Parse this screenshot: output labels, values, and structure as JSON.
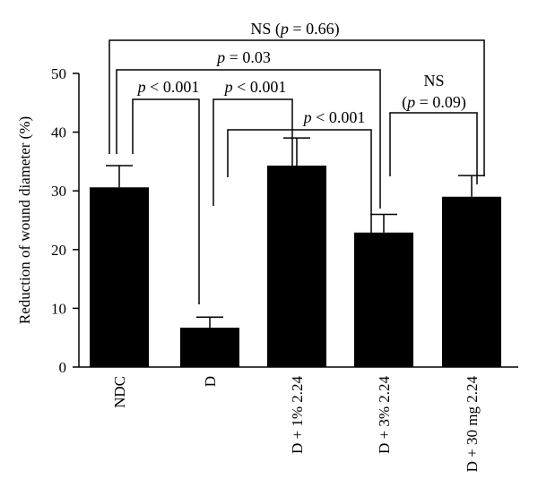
{
  "chart_data": {
    "type": "bar",
    "title": "",
    "xlabel": "",
    "ylabel": "Reduction of wound diameter (%)",
    "ylim": [
      0,
      50
    ],
    "yticks": [
      0,
      10,
      20,
      30,
      40,
      50
    ],
    "categories": [
      "NDC",
      "D",
      "D + 1% 2.24",
      "D + 3% 2.24",
      "D + 30 mg 2.24"
    ],
    "values": [
      30.6,
      6.7,
      34.3,
      22.9,
      29.0
    ],
    "errors": [
      3.7,
      1.8,
      4.7,
      3.1,
      3.6
    ],
    "bar_color": "#000000",
    "grid": false,
    "annotations": [
      {
        "from": 0,
        "to": 4,
        "label_parts": [
          "NS (",
          "p",
          " = 0.66)"
        ]
      },
      {
        "from": 0,
        "to": 3,
        "label_parts": [
          "",
          "p",
          " = 0.03"
        ]
      },
      {
        "from": 0,
        "to": 1,
        "label_parts": [
          "",
          "p",
          " < 0.001"
        ]
      },
      {
        "from": 1,
        "to": 2,
        "label_parts": [
          "",
          "p",
          " < 0.001"
        ]
      },
      {
        "from": 1,
        "to": 3,
        "label_parts": [
          "",
          "p",
          " < 0.001"
        ]
      },
      {
        "from": 3,
        "to": 4,
        "label_parts": [
          "NS (",
          "p",
          " = 0.09)"
        ]
      }
    ]
  }
}
